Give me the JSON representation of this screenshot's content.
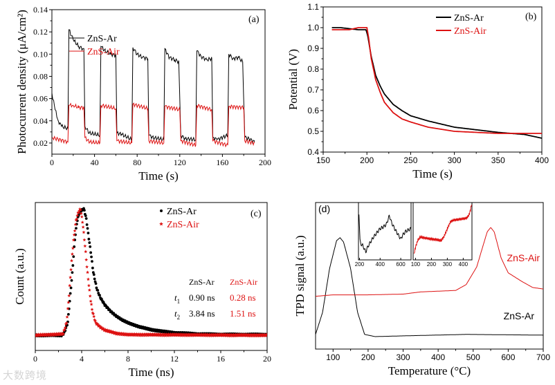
{
  "colors": {
    "ar": "#000000",
    "air": "#dd1111"
  },
  "watermark": "大数跨境",
  "chart_data": [
    {
      "id": "a",
      "type": "line",
      "panel_label": "(a)",
      "xlabel": "Time (s)",
      "ylabel": "Photocurrent density (μA/cm²)",
      "xlim": [
        0,
        200
      ],
      "ylim": [
        0.01,
        0.14
      ],
      "xticks": [
        0,
        40,
        80,
        120,
        160,
        200
      ],
      "xtick_labels": [
        "0",
        "40",
        "80",
        "120",
        "160",
        "200"
      ],
      "yticks": [
        0.02,
        0.04,
        0.06,
        0.08,
        0.1,
        0.12,
        0.14
      ],
      "ytick_labels": [
        "0.02",
        "0.04",
        "0.06",
        "0.08",
        "0.10",
        "0.12",
        "0.14"
      ],
      "legend": "top-center",
      "series": [
        {
          "name": "ZnS-Ar",
          "color": "#000000",
          "x": [
            0,
            3,
            6,
            9,
            15,
            16,
            20,
            25,
            29,
            30,
            31,
            35,
            45,
            46,
            50,
            55,
            60,
            61,
            65,
            75,
            76,
            80,
            85,
            90,
            91,
            95,
            105,
            106,
            110,
            115,
            119,
            121,
            125,
            135,
            136,
            140,
            145,
            150,
            151,
            155,
            165,
            166,
            170,
            175,
            179,
            181,
            185,
            190
          ],
          "y": [
            0.065,
            0.05,
            0.04,
            0.035,
            0.033,
            0.122,
            0.113,
            0.107,
            0.105,
            0.105,
            0.035,
            0.029,
            0.027,
            0.107,
            0.103,
            0.1,
            0.099,
            0.029,
            0.028,
            0.023,
            0.106,
            0.1,
            0.097,
            0.096,
            0.027,
            0.025,
            0.023,
            0.105,
            0.097,
            0.095,
            0.093,
            0.027,
            0.024,
            0.023,
            0.103,
            0.098,
            0.095,
            0.096,
            0.025,
            0.023,
            0.027,
            0.1,
            0.096,
            0.097,
            0.093,
            0.025,
            0.024,
            0.021
          ]
        },
        {
          "name": "ZnS-Air",
          "color": "#dd1111",
          "x": [
            0,
            15,
            16,
            20,
            25,
            30,
            31,
            35,
            45,
            46,
            60,
            61,
            75,
            76,
            90,
            91,
            105,
            106,
            120,
            121,
            135,
            136,
            150,
            151,
            165,
            166,
            180,
            181,
            190
          ],
          "y": [
            0.025,
            0.021,
            0.054,
            0.054,
            0.052,
            0.052,
            0.025,
            0.021,
            0.02,
            0.054,
            0.051,
            0.022,
            0.02,
            0.055,
            0.051,
            0.022,
            0.02,
            0.053,
            0.05,
            0.022,
            0.018,
            0.054,
            0.05,
            0.022,
            0.018,
            0.053,
            0.052,
            0.022,
            0.02
          ]
        }
      ]
    },
    {
      "id": "b",
      "type": "line",
      "panel_label": "(b)",
      "xlabel": "Time (s)",
      "ylabel": "Potential (V)",
      "xlim": [
        150,
        400
      ],
      "ylim": [
        0.4,
        1.1
      ],
      "xticks": [
        150,
        200,
        250,
        300,
        350,
        400
      ],
      "xtick_labels": [
        "150",
        "200",
        "250",
        "300",
        "350",
        "400"
      ],
      "yticks": [
        0.4,
        0.5,
        0.6,
        0.7,
        0.8,
        0.9,
        1.0,
        1.1
      ],
      "ytick_labels": [
        "0.4",
        "0.5",
        "0.6",
        "0.7",
        "0.8",
        "0.9",
        "1.0",
        "1.1"
      ],
      "legend": "top-right",
      "series": [
        {
          "name": "ZnS-Ar",
          "color": "#000000",
          "x": [
            160,
            170,
            190,
            199,
            201,
            205,
            210,
            215,
            220,
            230,
            240,
            250,
            270,
            300,
            350,
            380,
            400
          ],
          "y": [
            1.0,
            1.0,
            0.99,
            0.99,
            0.96,
            0.86,
            0.77,
            0.72,
            0.68,
            0.63,
            0.6,
            0.575,
            0.55,
            0.52,
            0.495,
            0.485,
            0.467
          ]
        },
        {
          "name": "ZnS-Air",
          "color": "#dd1111",
          "x": [
            160,
            180,
            190,
            200,
            202,
            205,
            210,
            215,
            220,
            230,
            240,
            250,
            270,
            300,
            350,
            400
          ],
          "y": [
            0.99,
            0.99,
            1.0,
            1.0,
            0.95,
            0.85,
            0.75,
            0.69,
            0.64,
            0.59,
            0.56,
            0.545,
            0.52,
            0.5,
            0.49,
            0.49
          ]
        }
      ]
    },
    {
      "id": "c",
      "type": "scatter",
      "panel_label": "(c)",
      "xlabel": "Time (ns)",
      "ylabel": "Count (a.u.)",
      "xlim": [
        0,
        20
      ],
      "ylim": [
        -0.12,
        1.05
      ],
      "xticks": [
        0,
        4,
        8,
        12,
        16,
        20
      ],
      "xtick_labels": [
        "0",
        "4",
        "8",
        "12",
        "16",
        "20"
      ],
      "yticks": [],
      "ytick_labels": [],
      "legend": "top-center",
      "series": [
        {
          "name": "ZnS-Ar",
          "marker": "circle",
          "color": "#000000",
          "x": [
            0,
            2.3,
            2.5,
            2.8,
            3.0,
            3.2,
            3.4,
            3.6,
            3.8,
            4.0,
            4.2,
            4.4,
            4.6,
            4.8,
            5.0,
            5.3,
            5.6,
            6.0,
            6.5,
            7.0,
            7.5,
            8,
            9,
            10,
            11,
            12,
            14,
            16,
            20
          ],
          "y": [
            0,
            0,
            0.02,
            0.1,
            0.3,
            0.5,
            0.75,
            0.9,
            0.97,
            0.99,
            1.0,
            0.92,
            0.78,
            0.65,
            0.5,
            0.37,
            0.3,
            0.24,
            0.19,
            0.15,
            0.12,
            0.1,
            0.065,
            0.045,
            0.03,
            0.02,
            0.01,
            0.006,
            0.005
          ]
        },
        {
          "name": "ZnS-Air",
          "marker": "star",
          "color": "#dd1111",
          "x": [
            0,
            2.4,
            2.7,
            2.9,
            3.1,
            3.3,
            3.5,
            3.7,
            3.9,
            4.1,
            4.3,
            4.5,
            4.7,
            4.9,
            5.2,
            5.6,
            6,
            7,
            8,
            20
          ],
          "y": [
            0,
            0.01,
            0.1,
            0.3,
            0.55,
            0.75,
            0.9,
            0.97,
            1.0,
            0.88,
            0.7,
            0.5,
            0.33,
            0.2,
            0.1,
            0.065,
            0.04,
            0.015,
            0.005,
            0
          ]
        }
      ],
      "lifetimes": {
        "header": [
          "",
          "ZnS-Ar",
          "ZnS-Air"
        ],
        "rows": [
          {
            "label": "t",
            "sub": "1",
            "ar": "0.90 ns",
            "air": "0.28 ns"
          },
          {
            "label": "t",
            "sub": "2",
            "ar": "3.84 ns",
            "air": "1.51 ns"
          }
        ]
      }
    },
    {
      "id": "d",
      "type": "line",
      "panel_label": "(d)",
      "xlabel": "Temperature (°C)",
      "ylabel": "TPD signal (a.u.)",
      "xlim": [
        50,
        700
      ],
      "ylim": [
        0,
        1
      ],
      "xticks": [
        100,
        200,
        300,
        400,
        500,
        600,
        700
      ],
      "xtick_labels": [
        "100",
        "200",
        "300",
        "400",
        "500",
        "600",
        "700"
      ],
      "yticks": [],
      "ytick_labels": [],
      "legend": "curve-labels",
      "series": [
        {
          "name": "ZnS-Ar",
          "color": "#000000",
          "x": [
            50,
            70,
            90,
            110,
            120,
            130,
            150,
            170,
            190,
            220,
            300,
            480,
            700
          ],
          "y": [
            0.1,
            0.25,
            0.55,
            0.74,
            0.76,
            0.73,
            0.55,
            0.25,
            0.1,
            0.085,
            0.09,
            0.1,
            0.095
          ]
        },
        {
          "name": "ZnS-Air",
          "color": "#dd1111",
          "x": [
            50,
            100,
            200,
            300,
            350,
            450,
            480,
            510,
            540,
            550,
            560,
            580,
            600,
            640,
            670,
            700
          ],
          "y": [
            0.36,
            0.37,
            0.37,
            0.375,
            0.39,
            0.4,
            0.44,
            0.56,
            0.8,
            0.83,
            0.8,
            0.62,
            0.52,
            0.46,
            0.42,
            0.41
          ]
        }
      ],
      "insets": [
        {
          "xlim": [
            190,
            700
          ],
          "ylim": [
            0,
            1.1
          ],
          "xticks": [
            200,
            400,
            600
          ],
          "xtick_labels": [
            "200",
            "400",
            "600"
          ],
          "color": "#000000",
          "x": [
            195,
            205,
            215,
            230,
            245,
            260,
            280,
            300,
            330,
            360,
            400,
            430,
            460,
            490,
            510,
            540,
            570,
            600,
            620,
            650,
            680,
            700
          ],
          "y": [
            0.9,
            0.35,
            0.3,
            0.28,
            0.22,
            0.15,
            0.25,
            0.32,
            0.42,
            0.5,
            0.6,
            0.63,
            0.68,
            0.85,
            0.72,
            0.6,
            0.5,
            0.4,
            0.48,
            0.55,
            0.58,
            0.6
          ]
        },
        {
          "xlim": [
            85,
            455
          ],
          "ylim": [
            0,
            1.1
          ],
          "xticks": [
            100,
            200,
            300,
            400
          ],
          "xtick_labels": [
            "100",
            "200",
            "300",
            "400"
          ],
          "color": "#dd1111",
          "x": [
            90,
            100,
            115,
            130,
            160,
            200,
            230,
            260,
            280,
            300,
            320,
            335,
            380,
            420,
            435,
            445,
            455
          ],
          "y": [
            0.1,
            0.25,
            0.38,
            0.44,
            0.42,
            0.4,
            0.39,
            0.37,
            0.45,
            0.6,
            0.73,
            0.76,
            0.78,
            0.8,
            0.85,
            0.95,
            1.1
          ]
        }
      ]
    }
  ]
}
